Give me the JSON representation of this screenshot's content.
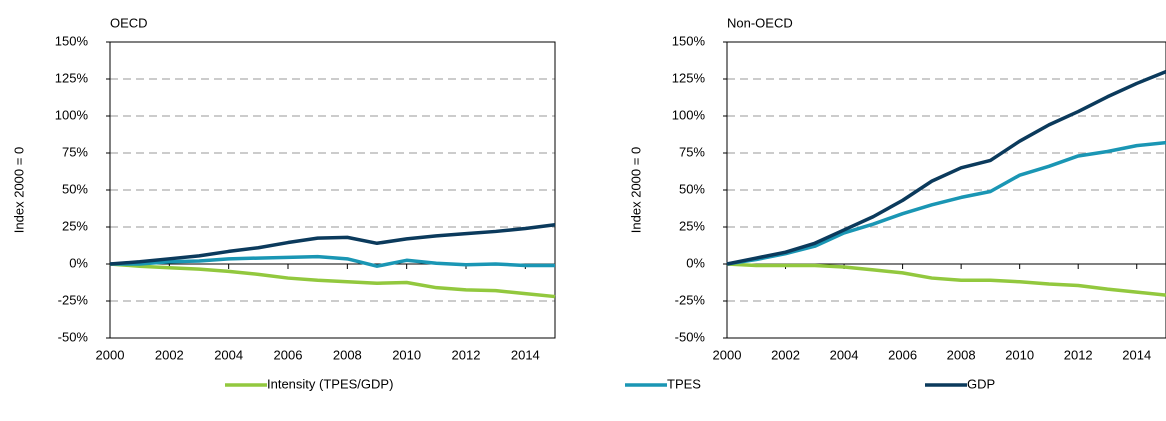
{
  "chart_data": [
    {
      "type": "line",
      "title": "OECD",
      "y_label": "Index 2000 = 0",
      "x": [
        2000,
        2001,
        2002,
        2003,
        2004,
        2005,
        2006,
        2007,
        2008,
        2009,
        2010,
        2011,
        2012,
        2013,
        2014,
        2015
      ],
      "xlim": [
        2000,
        2015
      ],
      "xticks": [
        2000,
        2002,
        2004,
        2006,
        2008,
        2010,
        2012,
        2014
      ],
      "ylim": [
        -50,
        150
      ],
      "yticks": [
        {
          "value": -50,
          "label": "-50%"
        },
        {
          "value": -25,
          "label": "-25%"
        },
        {
          "value": 0,
          "label": "0%"
        },
        {
          "value": 25,
          "label": "25%"
        },
        {
          "value": 50,
          "label": "50%"
        },
        {
          "value": 75,
          "label": "75%"
        },
        {
          "value": 100,
          "label": "100%"
        },
        {
          "value": 125,
          "label": "125%"
        },
        {
          "value": 150,
          "label": "150%"
        }
      ],
      "grid": true,
      "series": [
        {
          "name": "Intensity (TPES/GDP)",
          "color": "#92c83e",
          "values": [
            0,
            -1.5,
            -2.5,
            -3.5,
            -5,
            -7,
            -9.5,
            -11,
            -12,
            -13,
            -12.5,
            -16,
            -17.5,
            -18,
            -20,
            -22
          ]
        },
        {
          "name": "TPES",
          "color": "#1a96b4",
          "values": [
            0,
            0,
            1.5,
            2,
            3.5,
            4,
            4.5,
            5,
            3.5,
            -1.5,
            2.5,
            0.5,
            -0.5,
            0,
            -1,
            -1
          ]
        },
        {
          "name": "GDP",
          "color": "#0b3a5c",
          "values": [
            0,
            1.5,
            3.5,
            5.5,
            8.5,
            11,
            14.5,
            17.5,
            18,
            14,
            17,
            19,
            20.5,
            22,
            24,
            26.5
          ]
        }
      ]
    },
    {
      "type": "line",
      "title": "Non-OECD",
      "y_label": "Index 2000 = 0",
      "x": [
        2000,
        2001,
        2002,
        2003,
        2004,
        2005,
        2006,
        2007,
        2008,
        2009,
        2010,
        2011,
        2012,
        2013,
        2014,
        2015
      ],
      "xlim": [
        2000,
        2015
      ],
      "xticks": [
        2000,
        2002,
        2004,
        2006,
        2008,
        2010,
        2012,
        2014
      ],
      "ylim": [
        -50,
        150
      ],
      "yticks": [
        {
          "value": -50,
          "label": "-50%"
        },
        {
          "value": -25,
          "label": "-25%"
        },
        {
          "value": 0,
          "label": "0%"
        },
        {
          "value": 25,
          "label": "25%"
        },
        {
          "value": 50,
          "label": "50%"
        },
        {
          "value": 75,
          "label": "75%"
        },
        {
          "value": 100,
          "label": "100%"
        },
        {
          "value": 125,
          "label": "125%"
        },
        {
          "value": 150,
          "label": "150%"
        }
      ],
      "grid": true,
      "series": [
        {
          "color": "#92c83e",
          "values": [
            0,
            -1,
            -1,
            -1,
            -2,
            -4,
            -6,
            -9.5,
            -11,
            -11,
            -12,
            -13.5,
            -14.5,
            -17,
            -19,
            -21
          ]
        },
        {
          "color": "#1a96b4",
          "values": [
            0,
            3,
            7,
            12,
            21,
            27,
            34,
            40,
            45,
            49,
            60,
            66,
            73,
            76,
            80,
            82
          ]
        },
        {
          "color": "#0b3a5c",
          "values": [
            0,
            4,
            8,
            14,
            23,
            32,
            43,
            56,
            65,
            70,
            83,
            94,
            103,
            113,
            122,
            130
          ]
        }
      ]
    }
  ]
}
